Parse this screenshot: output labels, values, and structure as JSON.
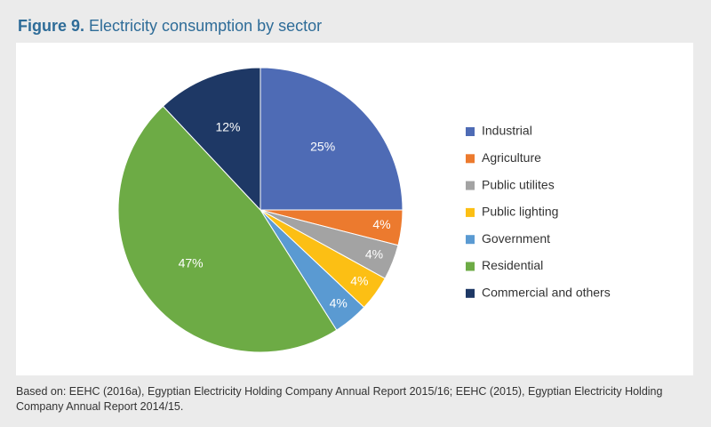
{
  "chart_data": {
    "type": "pie",
    "figure_label": "Figure 9.",
    "title": "Electricity consumption by sector",
    "categories": [
      "Industrial",
      "Agriculture",
      "Public utilites",
      "Public lighting",
      "Government",
      "Residential",
      "Commercial and others"
    ],
    "values": [
      25,
      4,
      4,
      4,
      4,
      47,
      12
    ],
    "value_labels": [
      "25%",
      "4%",
      "4%",
      "4%",
      "4%",
      "47%",
      "12%"
    ],
    "colors": [
      "#4e6bb5",
      "#ec7a2e",
      "#a3a3a3",
      "#fcbf14",
      "#5a9ad2",
      "#6dab45",
      "#1e3865"
    ],
    "legend": "right",
    "note": "Based on: EEHC (2016a), Egyptian Electricity Holding Company Annual Report 2015/16; EEHC (2015), Egyptian Electricity Holding Company Annual Report 2014/15."
  }
}
